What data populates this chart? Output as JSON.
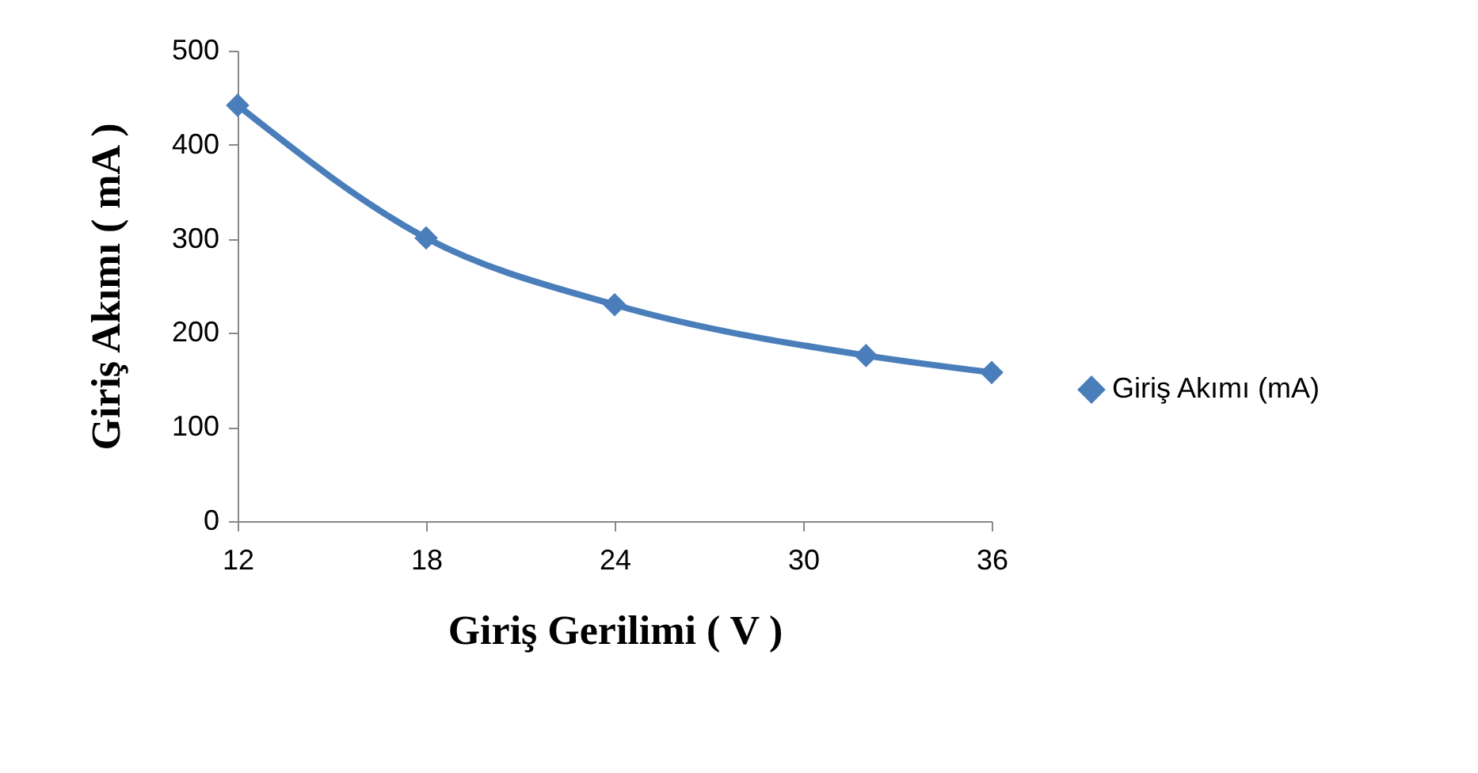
{
  "chart_data": {
    "type": "line",
    "xlabel": "Giriş Gerilimi ( V )",
    "ylabel": "Giriş Akımı ( mA )",
    "x": [
      12,
      18,
      24,
      32,
      36
    ],
    "series": [
      {
        "name": "Giriş Akımı (mA)",
        "color": "#4a7ebb",
        "values": [
          442,
          301,
          230,
          176,
          158
        ]
      }
    ],
    "xlim": [
      12,
      36
    ],
    "xticks": [
      12,
      18,
      24,
      30,
      36
    ],
    "ylim": [
      0,
      500
    ],
    "yticks": [
      0,
      100,
      200,
      300,
      400,
      500
    ],
    "marker": "diamond",
    "line_style": "solid",
    "legend": "right",
    "grid": false
  }
}
